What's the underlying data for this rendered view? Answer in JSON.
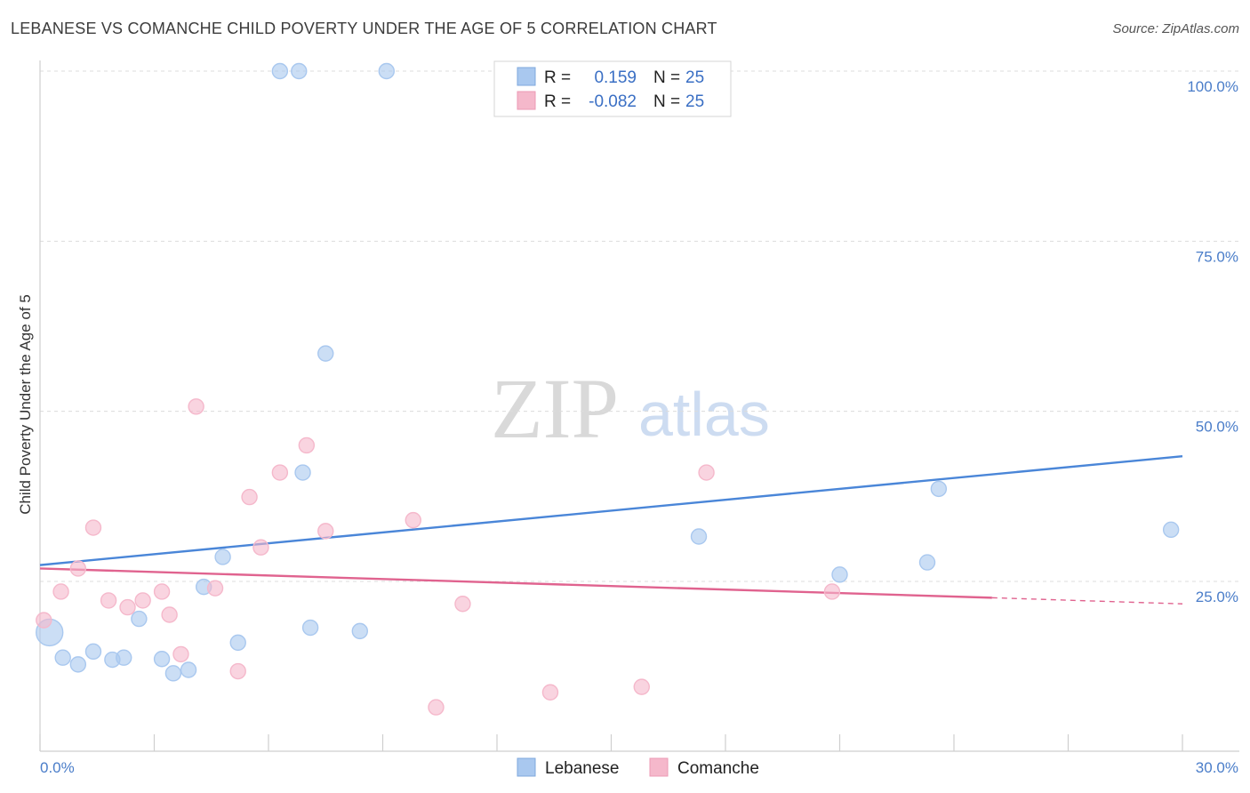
{
  "header": {
    "title": "LEBANESE VS COMANCHE CHILD POVERTY UNDER THE AGE OF 5 CORRELATION CHART",
    "source": "Source: ZipAtlas.com"
  },
  "watermark": {
    "zip": "ZIP",
    "atlas": "atlas"
  },
  "legend": {
    "rows": [
      {
        "r_label": "R =",
        "r_value": "0.159",
        "n_label": "N =",
        "n_value": "25",
        "color": "#a9c8ef"
      },
      {
        "r_label": "R =",
        "r_value": "-0.082",
        "n_label": "N =",
        "n_value": "25",
        "color": "#f5b8cb"
      }
    ]
  },
  "bottom_legend": [
    "Lebanese",
    "Comanche"
  ],
  "chart_data": {
    "type": "scatter",
    "title": "LEBANESE VS COMANCHE CHILD POVERTY UNDER THE AGE OF 5 CORRELATION CHART",
    "xlabel": "",
    "ylabel": "Child Poverty Under the Age of 5",
    "xlim": [
      0,
      30
    ],
    "ylim": [
      0,
      100
    ],
    "x_tick_labels": [
      "0.0%",
      "30.0%"
    ],
    "y_tick_labels": [
      "100.0%",
      "75.0%",
      "50.0%",
      "25.0%"
    ],
    "y_ticks": [
      100,
      75,
      50,
      25
    ],
    "grid": "horizontal dashed",
    "legend_position": "top-center",
    "series": [
      {
        "name": "Lebanese",
        "color": "#4a86d8",
        "fill": "#a9c8ef",
        "trend": {
          "x": [
            0,
            30
          ],
          "y": [
            27.4,
            43.4
          ]
        },
        "points": [
          {
            "x": 0.25,
            "y": 17.5,
            "big": true
          },
          {
            "x": 0.6,
            "y": 13.8
          },
          {
            "x": 1.0,
            "y": 12.8
          },
          {
            "x": 1.4,
            "y": 14.7
          },
          {
            "x": 1.9,
            "y": 13.5
          },
          {
            "x": 2.2,
            "y": 13.8
          },
          {
            "x": 2.6,
            "y": 19.5
          },
          {
            "x": 3.2,
            "y": 13.6
          },
          {
            "x": 3.5,
            "y": 11.5
          },
          {
            "x": 3.9,
            "y": 12.0
          },
          {
            "x": 4.3,
            "y": 24.2
          },
          {
            "x": 4.8,
            "y": 28.6
          },
          {
            "x": 5.2,
            "y": 16.0
          },
          {
            "x": 6.3,
            "y": 100
          },
          {
            "x": 6.8,
            "y": 100
          },
          {
            "x": 9.1,
            "y": 100
          },
          {
            "x": 6.9,
            "y": 41.0
          },
          {
            "x": 7.5,
            "y": 58.5
          },
          {
            "x": 7.1,
            "y": 18.2
          },
          {
            "x": 8.4,
            "y": 17.7
          },
          {
            "x": 17.3,
            "y": 31.6
          },
          {
            "x": 21.0,
            "y": 26.0
          },
          {
            "x": 23.3,
            "y": 27.8
          },
          {
            "x": 23.6,
            "y": 38.6
          },
          {
            "x": 29.7,
            "y": 32.6
          }
        ]
      },
      {
        "name": "Comanche",
        "color": "#e0638f",
        "fill": "#f5b8cb",
        "trend": {
          "x": [
            0,
            25
          ],
          "y": [
            26.9,
            22.6
          ]
        },
        "trend_dashed": {
          "x": [
            25,
            30
          ],
          "y": [
            22.6,
            21.7
          ]
        },
        "points": [
          {
            "x": 0.1,
            "y": 19.3
          },
          {
            "x": 0.55,
            "y": 23.5
          },
          {
            "x": 1.0,
            "y": 26.9
          },
          {
            "x": 1.4,
            "y": 32.9
          },
          {
            "x": 1.8,
            "y": 22.2
          },
          {
            "x": 2.3,
            "y": 21.2
          },
          {
            "x": 2.7,
            "y": 22.2
          },
          {
            "x": 3.2,
            "y": 23.5
          },
          {
            "x": 3.4,
            "y": 20.1
          },
          {
            "x": 3.7,
            "y": 14.3
          },
          {
            "x": 4.1,
            "y": 50.7
          },
          {
            "x": 4.6,
            "y": 24.0
          },
          {
            "x": 5.2,
            "y": 11.8
          },
          {
            "x": 5.5,
            "y": 37.4
          },
          {
            "x": 5.8,
            "y": 30.0
          },
          {
            "x": 6.3,
            "y": 41.0
          },
          {
            "x": 7.0,
            "y": 45.0
          },
          {
            "x": 7.5,
            "y": 32.4
          },
          {
            "x": 9.8,
            "y": 34.0
          },
          {
            "x": 10.4,
            "y": 6.5
          },
          {
            "x": 11.1,
            "y": 21.7
          },
          {
            "x": 13.4,
            "y": 8.7
          },
          {
            "x": 15.8,
            "y": 9.5
          },
          {
            "x": 17.5,
            "y": 41.0
          },
          {
            "x": 20.8,
            "y": 23.5
          }
        ]
      }
    ]
  }
}
